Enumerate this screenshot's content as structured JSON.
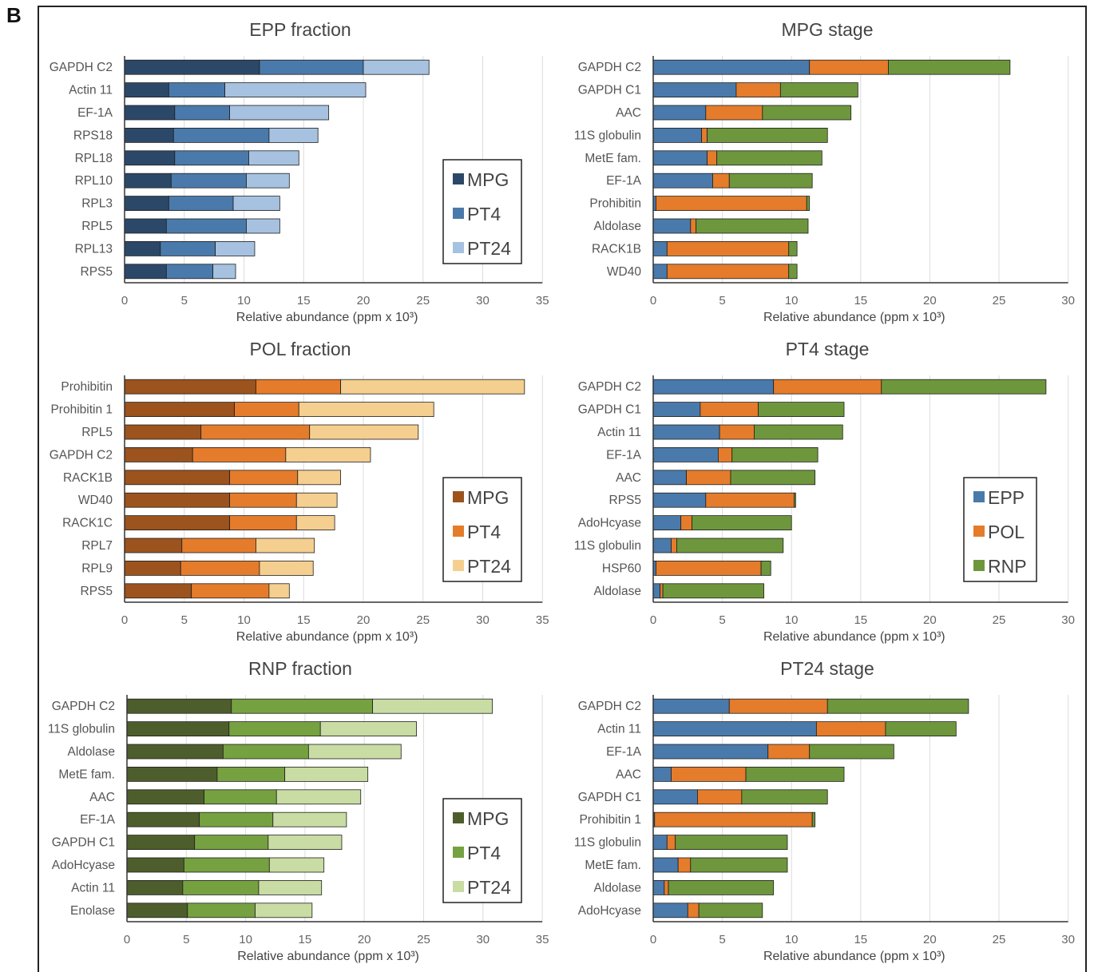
{
  "figure": {
    "panel_label": "B"
  },
  "chart_data": [
    {
      "id": "epp-fraction",
      "type": "bar",
      "orientation": "horizontal",
      "stacked": true,
      "title": "EPP fraction",
      "xlabel": "Relative abundance (ppm x 10³)",
      "xlim": [
        0,
        35
      ],
      "xticks": [
        0,
        5,
        10,
        15,
        20,
        25,
        30,
        35
      ],
      "grid": true,
      "legend_position": "right",
      "categories": [
        "GAPDH C2",
        "Actin 11",
        "EF-1A",
        "RPS18",
        "RPL18",
        "RPL10",
        "RPL3",
        "RPL5",
        "RPL13",
        "RPS5"
      ],
      "series": [
        {
          "name": "MPG",
          "color": "#2c4869",
          "values": [
            11.3,
            3.7,
            4.2,
            4.1,
            4.2,
            3.9,
            3.7,
            3.5,
            3.0,
            3.5
          ]
        },
        {
          "name": "PT4",
          "color": "#4a7aab",
          "values": [
            8.7,
            4.7,
            4.6,
            8.0,
            6.2,
            6.3,
            5.4,
            6.7,
            4.6,
            3.9
          ]
        },
        {
          "name": "PT24",
          "color": "#a6c2e0",
          "values": [
            5.5,
            11.8,
            8.3,
            4.1,
            4.2,
            3.6,
            3.9,
            2.8,
            3.3,
            1.9
          ]
        }
      ]
    },
    {
      "id": "mpg-stage",
      "type": "bar",
      "orientation": "horizontal",
      "stacked": true,
      "title": "MPG stage",
      "xlabel": "Relative abundance (ppm x 10³)",
      "xlim": [
        0,
        30
      ],
      "xticks": [
        0,
        5,
        10,
        15,
        20,
        25,
        30
      ],
      "grid": true,
      "legend_position": "none",
      "categories": [
        "GAPDH C2",
        "GAPDH C1",
        "AAC",
        "11S globulin",
        "MetE fam.",
        "EF-1A",
        "Prohibitin",
        "Aldolase",
        "RACK1B",
        "WD40"
      ],
      "series": [
        {
          "name": "EPP",
          "color": "#4a7aab",
          "values": [
            11.3,
            6.0,
            3.8,
            3.5,
            3.9,
            4.3,
            0.2,
            2.7,
            1.0,
            1.0
          ]
        },
        {
          "name": "POL",
          "color": "#e47c2b",
          "values": [
            5.7,
            3.2,
            4.1,
            0.4,
            0.7,
            1.2,
            10.9,
            0.4,
            8.8,
            8.8
          ]
        },
        {
          "name": "RNP",
          "color": "#6e973d",
          "values": [
            8.8,
            5.6,
            6.4,
            8.7,
            7.6,
            6.0,
            0.2,
            8.1,
            0.6,
            0.6
          ]
        }
      ]
    },
    {
      "id": "pol-fraction",
      "type": "bar",
      "orientation": "horizontal",
      "stacked": true,
      "title": "POL fraction",
      "xlabel": "Relative abundance (ppm x 10³)",
      "xlim": [
        0,
        35
      ],
      "xticks": [
        0,
        5,
        10,
        15,
        20,
        25,
        30,
        35
      ],
      "grid": true,
      "legend_position": "right",
      "categories": [
        "Prohibitin",
        "Prohibitin 1",
        "RPL5",
        "GAPDH C2",
        "RACK1B",
        "WD40",
        "RACK1C",
        "RPL7",
        "RPL9",
        "RPS5"
      ],
      "series": [
        {
          "name": "MPG",
          "color": "#9c531d",
          "values": [
            11.0,
            9.2,
            6.4,
            5.7,
            8.8,
            8.8,
            8.8,
            4.8,
            4.7,
            5.6
          ]
        },
        {
          "name": "PT4",
          "color": "#e47c2b",
          "values": [
            7.1,
            5.4,
            9.1,
            7.8,
            5.7,
            5.6,
            5.6,
            6.2,
            6.6,
            6.5
          ]
        },
        {
          "name": "PT24",
          "color": "#f4cf8f",
          "values": [
            15.4,
            11.3,
            9.1,
            7.1,
            3.6,
            3.4,
            3.2,
            4.9,
            4.5,
            1.7
          ]
        }
      ]
    },
    {
      "id": "pt4-stage",
      "type": "bar",
      "orientation": "horizontal",
      "stacked": true,
      "title": "PT4 stage",
      "xlabel": "Relative abundance (ppm x 10³)",
      "xlim": [
        0,
        30
      ],
      "xticks": [
        0,
        5,
        10,
        15,
        20,
        25,
        30
      ],
      "grid": true,
      "legend_position": "right",
      "categories": [
        "GAPDH C2",
        "GAPDH C1",
        "Actin 11",
        "EF-1A",
        "AAC",
        "RPS5",
        "AdoHcyase",
        "11S globulin",
        "HSP60",
        "Aldolase"
      ],
      "series": [
        {
          "name": "EPP",
          "color": "#4a7aab",
          "values": [
            8.7,
            3.4,
            4.8,
            4.7,
            2.4,
            3.8,
            2.0,
            1.3,
            0.2,
            0.5
          ]
        },
        {
          "name": "POL",
          "color": "#e47c2b",
          "values": [
            7.8,
            4.2,
            2.5,
            1.0,
            3.2,
            6.4,
            0.8,
            0.4,
            7.6,
            0.2
          ]
        },
        {
          "name": "RNP",
          "color": "#6e973d",
          "values": [
            11.9,
            6.2,
            6.4,
            6.2,
            6.1,
            0.1,
            7.2,
            7.7,
            0.7,
            7.3
          ]
        }
      ]
    },
    {
      "id": "rnp-fraction",
      "type": "bar",
      "orientation": "horizontal",
      "stacked": true,
      "title": "RNP fraction",
      "xlabel": "Relative abundance (ppm x 10³)",
      "xlim": [
        0,
        35
      ],
      "xticks": [
        0,
        5,
        10,
        15,
        20,
        25,
        30,
        35
      ],
      "grid": true,
      "legend_position": "right",
      "categories": [
        "GAPDH C2",
        "11S globulin",
        "Aldolase",
        "MetE fam.",
        "AAC",
        "EF-1A",
        "GAPDH C1",
        "AdoHcyase",
        "Actin 11",
        "Enolase"
      ],
      "series": [
        {
          "name": "MPG",
          "color": "#4d5e2c",
          "values": [
            8.8,
            8.6,
            8.1,
            7.6,
            6.5,
            6.1,
            5.7,
            4.8,
            4.7,
            5.1
          ]
        },
        {
          "name": "PT4",
          "color": "#76a140",
          "values": [
            11.9,
            7.7,
            7.2,
            5.7,
            6.1,
            6.2,
            6.2,
            7.2,
            6.4,
            5.7
          ]
        },
        {
          "name": "PT24",
          "color": "#c8dca4",
          "values": [
            10.1,
            8.1,
            7.8,
            7.0,
            7.1,
            6.2,
            6.2,
            4.6,
            5.3,
            4.8
          ]
        }
      ]
    },
    {
      "id": "pt24-stage",
      "type": "bar",
      "orientation": "horizontal",
      "stacked": true,
      "title": "PT24 stage",
      "xlabel": "Relative abundance (ppm x 10³)",
      "xlim": [
        0,
        30
      ],
      "xticks": [
        0,
        5,
        10,
        15,
        20,
        25,
        30
      ],
      "grid": true,
      "legend_position": "none",
      "categories": [
        "GAPDH C2",
        "Actin 11",
        "EF-1A",
        "AAC",
        "GAPDH C1",
        "Prohibitin 1",
        "11S globulin",
        "MetE fam.",
        "Aldolase",
        "AdoHcyase"
      ],
      "series": [
        {
          "name": "EPP",
          "color": "#4a7aab",
          "values": [
            5.5,
            11.8,
            8.3,
            1.3,
            3.2,
            0.1,
            1.0,
            1.8,
            0.8,
            2.5
          ]
        },
        {
          "name": "POL",
          "color": "#e47c2b",
          "values": [
            7.1,
            5.0,
            3.0,
            5.4,
            3.2,
            11.4,
            0.6,
            0.9,
            0.3,
            0.8
          ]
        },
        {
          "name": "RNP",
          "color": "#6e973d",
          "values": [
            10.2,
            5.1,
            6.1,
            7.1,
            6.2,
            0.2,
            8.1,
            7.0,
            7.6,
            4.6
          ]
        }
      ]
    }
  ]
}
